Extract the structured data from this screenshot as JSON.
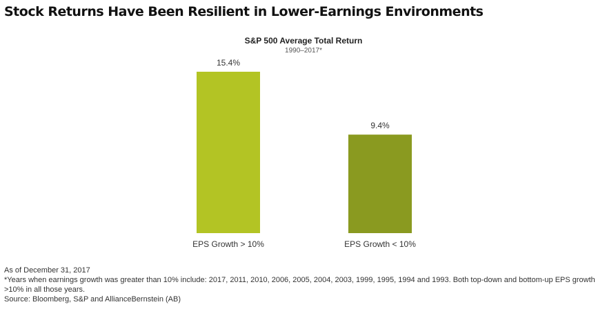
{
  "headline": "Stock Returns Have Been Resilient in Lower-Earnings Environments",
  "chart_data": {
    "type": "bar",
    "title": "S&P 500 Average Total Return",
    "subtitle": "1990–2017*",
    "categories": [
      "EPS Growth > 10%",
      "EPS Growth < 10%"
    ],
    "values": [
      15.4,
      9.4
    ],
    "data_labels": [
      "15.4%",
      "9.4%"
    ],
    "colors": [
      "#b3c424",
      "#8a9a20"
    ],
    "xlabel": "",
    "ylabel": "",
    "ylim": [
      0,
      15.4
    ],
    "grid": false,
    "legend": "none"
  },
  "notes": {
    "as_of": "As of December 31, 2017",
    "footnote": "*Years when earnings growth was greater than 10% include: 2017, 2011, 2010, 2006, 2005, 2004, 2003, 1999, 1995, 1994 and 1993.  Both top-down and bottom-up EPS growth >10% in all those years.",
    "source": "Source: Bloomberg, S&P and AllianceBernstein (AB)"
  }
}
